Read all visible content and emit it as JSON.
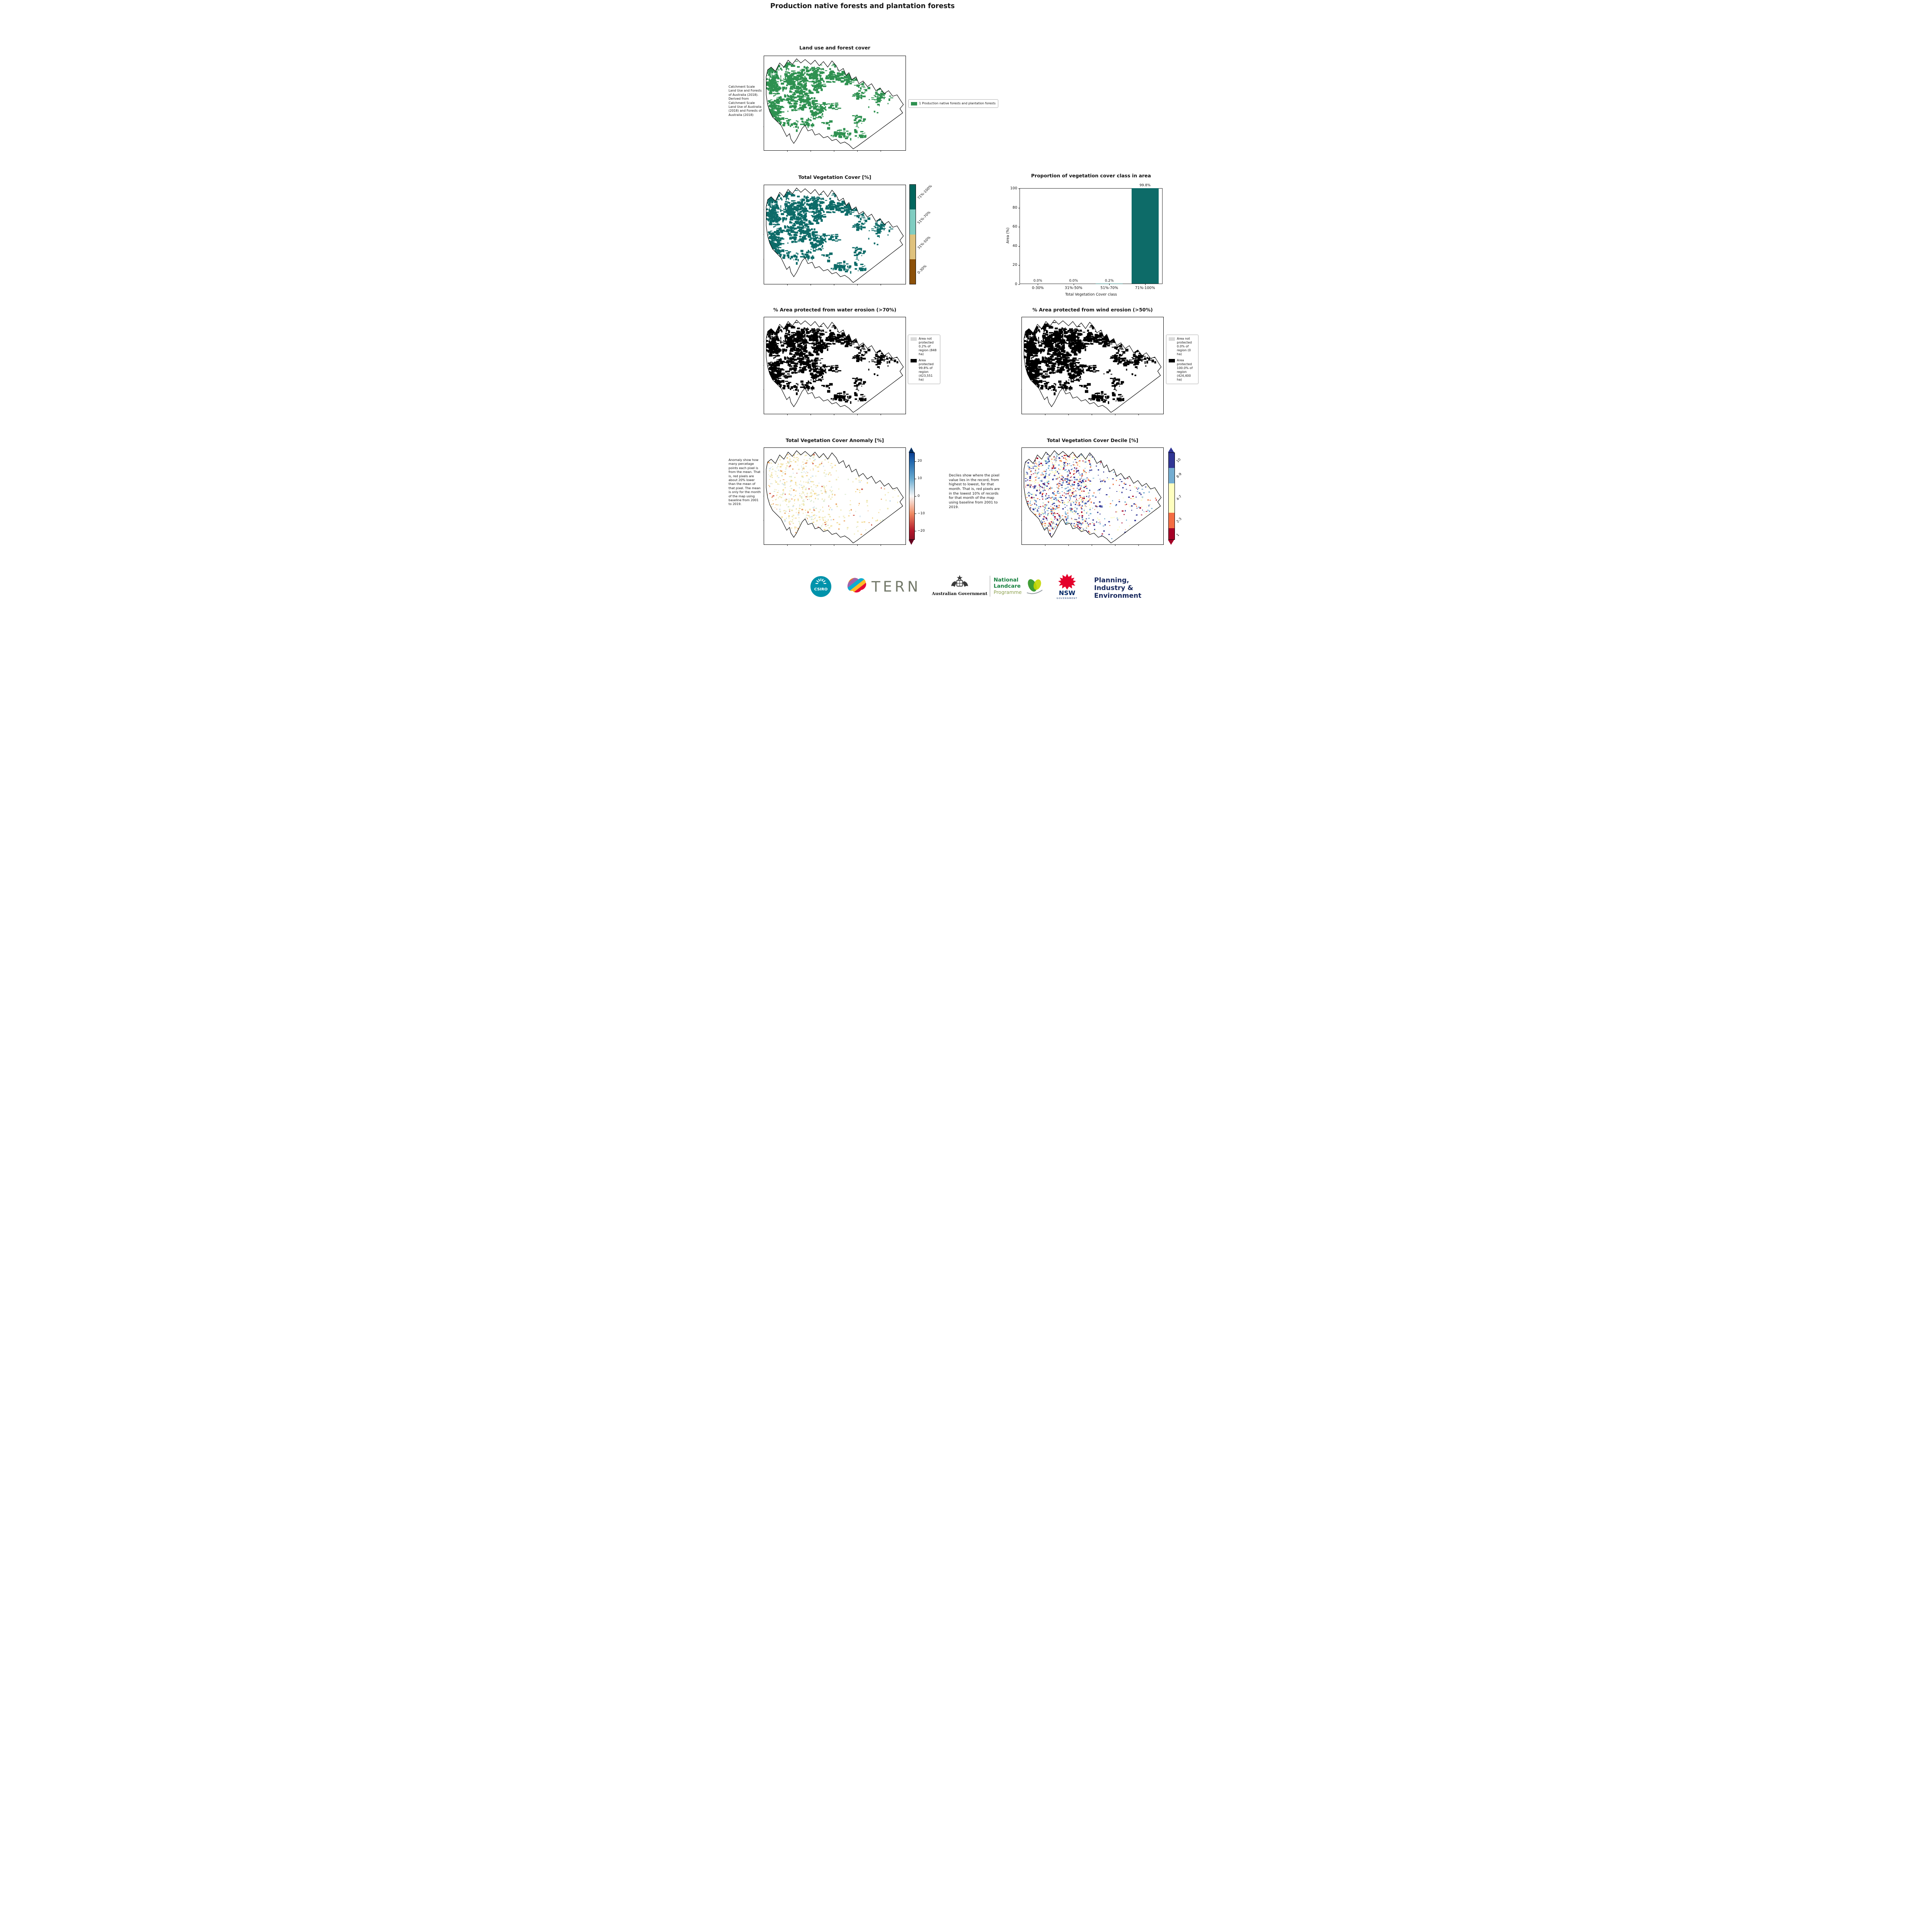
{
  "page": {
    "title": "Production native forests and plantation forests"
  },
  "panels": {
    "landuse": {
      "title": "Land use and forest cover",
      "caption": "Catchment Scale Land Use and Forests of Australia (2018). Derived from Catchment Scale Land Use of Australia (2018) and Forests of Australia (2018)",
      "legend": [
        {
          "label": "1 Production native forests and plantation forests",
          "color": "#2e9150"
        }
      ]
    },
    "veg_cover": {
      "title": "Total Vegetation Cover [%]",
      "colorbar": [
        {
          "label": "71%-100%",
          "color": "#01665e"
        },
        {
          "label": "51%-70%",
          "color": "#80cdc1"
        },
        {
          "label": "31%-50%",
          "color": "#dfc27d"
        },
        {
          "label": "0-30%",
          "color": "#8c510a"
        }
      ]
    },
    "water": {
      "title": "% Area protected from water erosion (>70%)",
      "legend": [
        {
          "label": "Area not protected 0.2% of region (848 ha)",
          "color": "#d9d9d9"
        },
        {
          "label": "Area protected 99.8% of region (423,551 ha)",
          "color": "#000000"
        }
      ]
    },
    "wind": {
      "title": "% Area protected from wind erosion (>50%)",
      "legend": [
        {
          "label": "Area not protected 0.0% of region (0 ha)",
          "color": "#d9d9d9"
        },
        {
          "label": "Area protected 100.0% of region (424,400 ha)",
          "color": "#000000"
        }
      ]
    },
    "anomaly": {
      "title": "Total Vegetation Cover Anomaly [%]",
      "caption": "Anomaly show how many percetage points each pixel is from the mean. That is, red pixels are about 20% lower than the mean of that pixel. The mean is only for the month of the map using baseline from 2001 to 2019.",
      "ticks": [
        "20",
        "10",
        "0",
        "−10",
        "−20"
      ]
    },
    "decile": {
      "title": "Total Vegetation Cover Decile [%]",
      "caption": "Deciles show where the pixel value lies in the record, from highest to lowest, for that month. That is, red pixels are in the lowest 10% of records for that month of the map using baseline from 2001 to 2019.",
      "colorbar": [
        {
          "label": "10",
          "color": "#313695"
        },
        {
          "label": "8-9",
          "color": "#74add1"
        },
        {
          "label": "4-7",
          "color": "#ffffbf"
        },
        {
          "label": "2-3",
          "color": "#f46d43"
        },
        {
          "label": "1",
          "color": "#a50026"
        }
      ]
    }
  },
  "chart_data": {
    "type": "bar",
    "title": "Proportion of vegetation cover class in area",
    "categories": [
      "0-30%",
      "31%-50%",
      "51%-70%",
      "71%-100%"
    ],
    "values": [
      0.0,
      0.0,
      0.2,
      99.8
    ],
    "bar_labels": [
      "0.0%",
      "0.0%",
      "0.2%",
      "99.8%"
    ],
    "xlabel": "Total Vegetation Cover class",
    "ylabel": "Area (%)",
    "ylim": [
      0,
      100
    ],
    "yticks": [
      0,
      20,
      40,
      60,
      80,
      100
    ],
    "bar_color": "#0d6b68",
    "grid": false,
    "legend_position": "none"
  },
  "colors": {
    "landuse_green": "#2e9150",
    "vegcover_teal": "#0d6b68",
    "protected_black": "#000000",
    "notprotected_gray": "#d9d9d9",
    "anomaly_palette": [
      "#efe8b4",
      "#f3d98f",
      "#dcead0",
      "#cfe2ee",
      "#eaa25e",
      "#d05848"
    ],
    "decile_palette": [
      "#313695",
      "#74add1",
      "#fdfdc0",
      "#f1814d",
      "#a50026"
    ]
  },
  "footer": {
    "csiro": "CSIRO",
    "tern": "TERN",
    "aus_gov": "Australian Government",
    "landcare_line1": "National",
    "landcare_line2": "Landcare",
    "landcare_line3": "Programme",
    "nsw": "NSW",
    "nsw_sub": "GOVERNMENT",
    "dpie": [
      "Planning,",
      "Industry &",
      "Environment"
    ]
  }
}
